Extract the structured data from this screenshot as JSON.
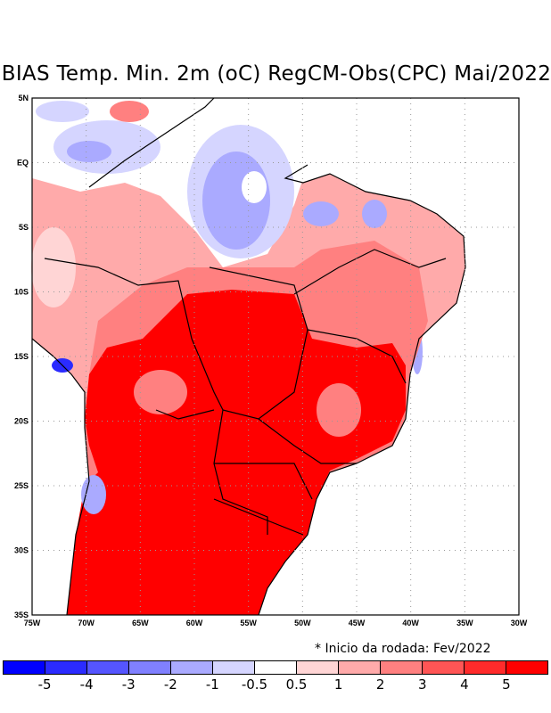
{
  "title": "BIAS Temp. Min. 2m (oC) RegCM-Obs(CPC) Mai/2022",
  "footnote": "* Inicio da rodada: Fev/2022",
  "map": {
    "lon_range": [
      -75,
      -30
    ],
    "lat_range": [
      -35,
      5
    ],
    "lon_labels": [
      "75W",
      "70W",
      "65W",
      "60W",
      "55W",
      "50W",
      "45W",
      "40W",
      "35W",
      "30W"
    ],
    "lat_labels": [
      "5N",
      "EQ",
      "5S",
      "10S",
      "15S",
      "20S",
      "25S",
      "30S",
      "35S"
    ],
    "variable": "Min temperature 2m bias (oC)"
  },
  "colorbar": {
    "labels": [
      "-5",
      "-4",
      "-3",
      "-2",
      "-1",
      "-0.5",
      "0.5",
      "1",
      "2",
      "3",
      "4",
      "5"
    ],
    "colors": [
      "#0000ff",
      "#2b2bff",
      "#5555ff",
      "#8080ff",
      "#aaaaff",
      "#d5d5ff",
      "#ffffff",
      "#ffd5d5",
      "#ffaaaa",
      "#ff8080",
      "#ff5555",
      "#ff2b2b",
      "#ff0000"
    ]
  }
}
